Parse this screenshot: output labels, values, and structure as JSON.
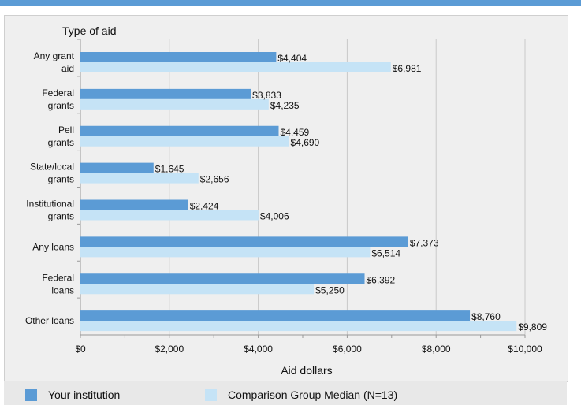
{
  "chart_data": {
    "type": "bar",
    "orientation": "horizontal",
    "ylabel": "Type of aid",
    "xlabel": "Aid dollars",
    "xlim": [
      0,
      10000
    ],
    "xticks": [
      "$0",
      "$2,000",
      "$4,000",
      "$6,000",
      "$8,000",
      "$10,000"
    ],
    "categories": [
      [
        "Any grant",
        "aid"
      ],
      [
        "Federal",
        "grants"
      ],
      [
        "Pell",
        "grants"
      ],
      [
        "State/local",
        "grants"
      ],
      [
        "Institutional",
        "grants"
      ],
      [
        "Any loans"
      ],
      [
        "Federal",
        "loans"
      ],
      [
        "Other loans"
      ]
    ],
    "series": [
      {
        "name": "Your institution",
        "color": "#5b9bd5",
        "values": [
          4404,
          3833,
          4459,
          1645,
          2424,
          7373,
          6392,
          8760
        ],
        "labels": [
          "$4,404",
          "$3,833",
          "$4,459",
          "$1,645",
          "$2,424",
          "$7,373",
          "$6,392",
          "$8,760"
        ]
      },
      {
        "name": "Comparison Group Median (N=13)",
        "color": "#c5e3f6",
        "values": [
          6981,
          4235,
          4690,
          2656,
          4006,
          6514,
          5250,
          9809
        ],
        "labels": [
          "$6,981",
          "$4,235",
          "$4,690",
          "$2,656",
          "$4,006",
          "$6,514",
          "$5,250",
          "$9,809"
        ]
      }
    ],
    "grid": true,
    "legend": "bottom"
  }
}
